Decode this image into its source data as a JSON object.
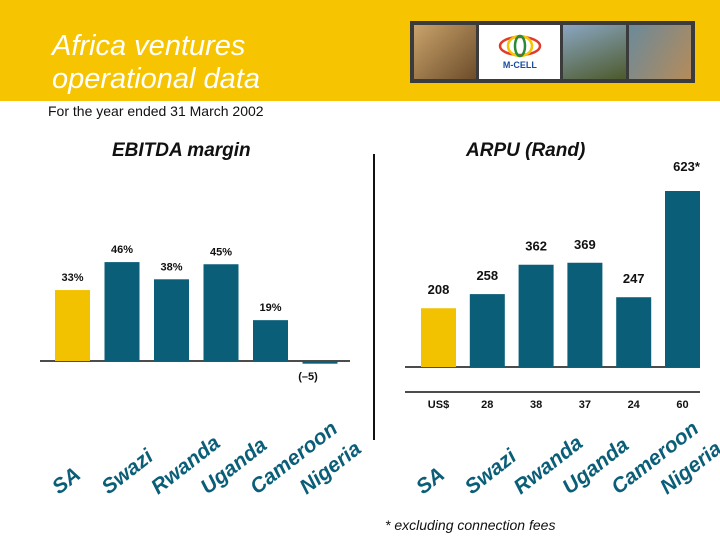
{
  "header": {
    "title_line1": "Africa ventures",
    "title_line2": "operational data",
    "subtitle": "For the year ended 31 March 2002",
    "logo_text": "M-CELL",
    "accent_color": "#f6c400"
  },
  "footnote": "* excluding connection fees",
  "chart_data": [
    {
      "type": "bar",
      "title": "EBITDA margin",
      "categories": [
        "SA",
        "Swazi",
        "Rwanda",
        "Uganda",
        "Cameroon",
        "Nigeria"
      ],
      "values": [
        33,
        46,
        38,
        45,
        19,
        -5
      ],
      "labels": [
        "33%",
        "46%",
        "38%",
        "45%",
        "19%",
        "(–5)"
      ],
      "colors": [
        "#f2c200",
        "#0a5e78",
        "#0a5e78",
        "#0a5e78",
        "#0a5e78",
        "#0a5e78"
      ],
      "xlabel": "",
      "ylabel": "",
      "ylim": [
        -5,
        50
      ]
    },
    {
      "type": "bar",
      "title": "ARPU (Rand)",
      "categories": [
        "SA",
        "Swazi",
        "Rwanda",
        "Uganda",
        "Cameroon",
        "Nigeria"
      ],
      "values": [
        208,
        258,
        362,
        369,
        247,
        623
      ],
      "labels": [
        "208",
        "258",
        "362",
        "369",
        "247",
        "623*"
      ],
      "usd_label": "US$",
      "usd_values": [
        "",
        "28",
        "38",
        "37",
        "24",
        "60"
      ],
      "colors": [
        "#f2c200",
        "#0a5e78",
        "#0a5e78",
        "#0a5e78",
        "#0a5e78",
        "#0a5e78"
      ],
      "xlabel": "",
      "ylabel": "",
      "ylim": [
        0,
        650
      ]
    }
  ]
}
